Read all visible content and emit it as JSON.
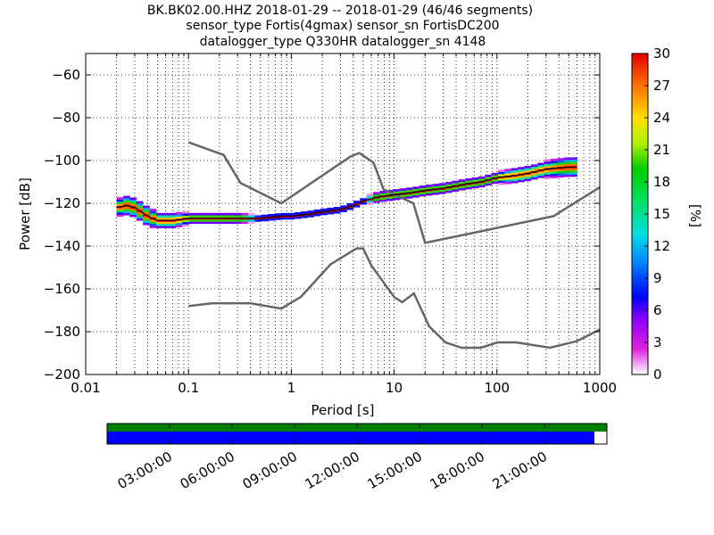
{
  "title_lines": [
    "BK.BK02.00.HHZ   2018-01-29 -- 2018-01-29  (46/46 segments)",
    "sensor_type Fortis(4gmax) sensor_sn FortisDC200",
    "datalogger_type Q330HR datalogger_sn 4148"
  ],
  "chart_data": {
    "type": "heatmap",
    "xlabel": "Period [s]",
    "ylabel": "Power [dB]",
    "xscale": "log",
    "xlim": [
      0.01,
      1000
    ],
    "ylim": [
      -200,
      -50
    ],
    "x_tick_labels": [
      "0.01",
      "0.1",
      "1",
      "10",
      "100",
      "1000"
    ],
    "x_ticks": [
      0.01,
      0.1,
      1,
      10,
      100,
      1000
    ],
    "y_tick_labels": [
      "−200",
      "−180",
      "−160",
      "−140",
      "−120",
      "−100",
      "−80",
      "−60"
    ],
    "y_ticks": [
      -200,
      -180,
      -160,
      -140,
      -120,
      -100,
      -80,
      -60
    ],
    "grid": true,
    "colorbar": {
      "label": "[%]",
      "range": [
        0,
        30
      ],
      "tick_labels": [
        "0",
        "3",
        "6",
        "9",
        "12",
        "15",
        "18",
        "21",
        "24",
        "27",
        "30"
      ],
      "ticks": [
        0,
        3,
        6,
        9,
        12,
        15,
        18,
        21,
        24,
        27,
        30
      ]
    },
    "median_line": {
      "period": [
        0.02,
        0.025,
        0.03,
        0.04,
        0.05,
        0.07,
        0.1,
        0.15,
        0.2,
        0.3,
        0.5,
        0.8,
        1,
        1.5,
        2,
        3,
        4,
        5,
        7,
        10,
        15,
        20,
        30,
        50,
        70,
        100,
        150,
        200,
        300,
        500,
        600
      ],
      "db": [
        -122,
        -121,
        -122,
        -126,
        -128,
        -128,
        -127,
        -127,
        -127,
        -127,
        -127,
        -126,
        -126,
        -125,
        -124,
        -123,
        -121,
        -119,
        -117,
        -116,
        -115,
        -114,
        -113,
        -111,
        -110,
        -108,
        -107,
        -106,
        -104,
        -103,
        -103
      ]
    },
    "spread": {
      "period": [
        0.02,
        0.025,
        0.03,
        0.04,
        0.05,
        0.07,
        0.1,
        0.15,
        0.2,
        0.3,
        0.5,
        0.8,
        1,
        1.5,
        2,
        3,
        4,
        5,
        7,
        10,
        15,
        20,
        30,
        50,
        70,
        100,
        150,
        200,
        300,
        500,
        600
      ],
      "halfwidth_db": [
        3,
        4,
        4,
        4,
        3,
        3,
        2,
        2,
        2,
        2,
        1,
        1,
        1,
        1,
        1,
        1,
        1,
        1,
        2,
        2,
        2,
        2,
        2,
        2,
        2,
        2,
        3,
        3,
        3,
        4,
        4
      ]
    },
    "noise_models": [
      {
        "period": [
          0.1,
          0.22,
          0.32,
          0.8,
          3.8,
          4.6,
          6.3,
          7.9,
          15.4,
          20,
          354.8,
          1000
        ],
        "db": [
          -91.5,
          -97.4,
          -110.5,
          -120,
          -98,
          -96.5,
          -101,
          -113.5,
          -120,
          -138.5,
          -126,
          -112.5
        ]
      },
      {
        "period": [
          0.1,
          0.17,
          0.4,
          0.8,
          1.24,
          2.4,
          4.3,
          5,
          6,
          10,
          12,
          15.6,
          21.9,
          31.6,
          45,
          70,
          101,
          154,
          328,
          600,
          1000
        ],
        "db": [
          -168,
          -166.7,
          -166.7,
          -169.2,
          -163.7,
          -148.6,
          -141.1,
          -141.1,
          -149,
          -163.8,
          -166.2,
          -162.1,
          -177.5,
          -185,
          -187.5,
          -187.5,
          -185,
          -185,
          -187.5,
          -184.4,
          -179
        ]
      }
    ]
  },
  "availability": {
    "time_tick_labels": [
      "03:00:00",
      "06:00:00",
      "09:00:00",
      "12:00:00",
      "15:00:00",
      "18:00:00",
      "21:00:00"
    ],
    "time_ticks_hours": [
      3,
      6,
      9,
      12,
      15,
      18,
      21
    ],
    "range_hours": [
      0,
      24
    ],
    "data_fraction": 1.0,
    "gap_end_fraction": 0.975,
    "colors": {
      "data": "#008000",
      "gaps": "#0000ff"
    }
  },
  "colors": {
    "model_line": "#666666",
    "median": "#000000"
  }
}
